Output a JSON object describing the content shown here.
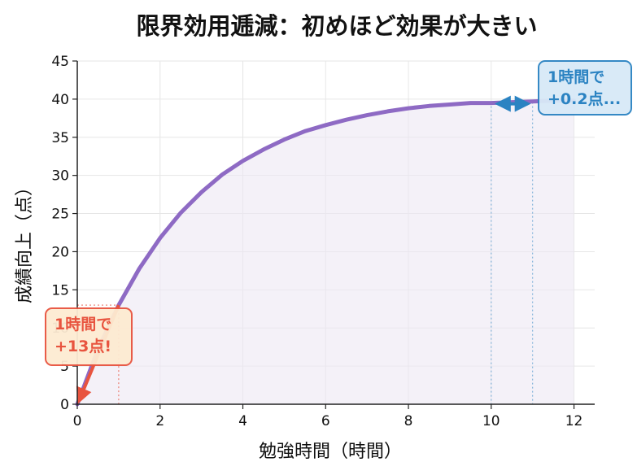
{
  "chart_data": {
    "type": "line",
    "title": "限界効用逓減：初めほど効果が大きい",
    "xlabel": "勉強時間（時間）",
    "ylabel": "成績向上（点）",
    "xlim": [
      0,
      12.5
    ],
    "ylim": [
      0,
      45
    ],
    "xticks": [
      0,
      2,
      4,
      6,
      8,
      10,
      12
    ],
    "yticks": [
      0,
      5,
      10,
      15,
      20,
      25,
      30,
      35,
      40,
      45
    ],
    "grid": true,
    "series": [
      {
        "color": "#8e6ac4",
        "fill": "#ece7f4",
        "x": [
          0,
          0.5,
          1,
          1.5,
          2,
          2.5,
          3,
          3.5,
          4,
          4.5,
          5,
          5.5,
          6,
          6.5,
          7,
          7.5,
          8,
          8.5,
          9,
          9.5,
          10,
          10.5,
          11,
          11.5,
          12
        ],
        "y": [
          0,
          7.2,
          13.0,
          17.8,
          21.8,
          25.1,
          27.8,
          30.1,
          31.9,
          33.4,
          34.7,
          35.8,
          36.6,
          37.3,
          37.9,
          38.4,
          38.8,
          39.1,
          39.3,
          39.5,
          39.5,
          39.6,
          39.7,
          39.8,
          39.8
        ]
      }
    ],
    "annotations": [
      {
        "lines": [
          "1時間で",
          "+13点!"
        ],
        "color": "#e8543f",
        "bg": "#fdebd2",
        "from": [
          1,
          13
        ],
        "to": [
          0,
          0
        ]
      },
      {
        "lines": [
          "1時間で",
          "+0.2点..."
        ],
        "color": "#2b83c2",
        "bg": "#d8e9f7",
        "from": [
          10,
          39.5
        ],
        "to": [
          11,
          39.7
        ]
      }
    ]
  }
}
